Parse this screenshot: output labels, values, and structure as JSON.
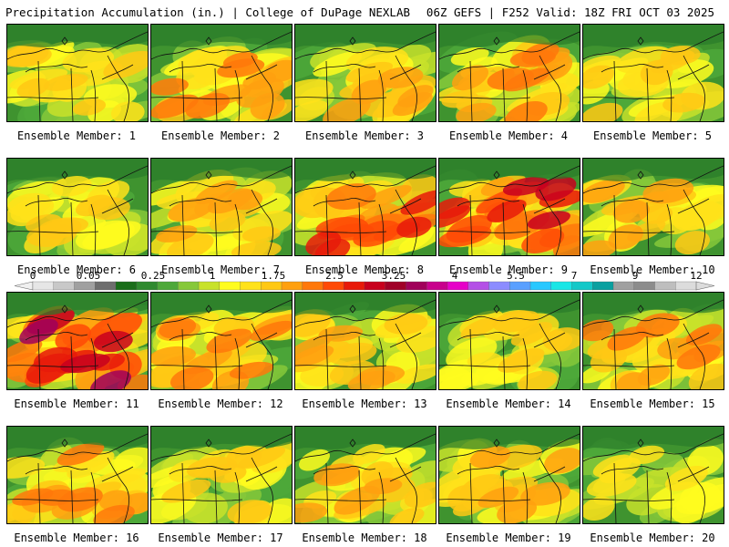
{
  "header": {
    "left": "Precipitation Accumulation (in.) | College of DuPage NEXLAB",
    "right": "06Z GEFS | F252 Valid: 18Z FRI OCT 03 2025"
  },
  "legend": {
    "tick_labels": [
      "0",
      "0.05",
      "0.25",
      "1",
      "1.75",
      "2.5",
      "3.25",
      "4",
      "5.5",
      "7",
      "9",
      "12"
    ],
    "colors": [
      "#e6e6e6",
      "#c8c8c8",
      "#a0a0a0",
      "#6e6e6e",
      "#1a6e1a",
      "#2f8a2f",
      "#4ea83a",
      "#86c83a",
      "#c8e22a",
      "#fffc1e",
      "#ffe21a",
      "#ffc814",
      "#ffa00f",
      "#ff780a",
      "#ff4a06",
      "#e81a0a",
      "#c8001e",
      "#a00028",
      "#a0005a",
      "#c8008c",
      "#e600c8",
      "#b450e6",
      "#8c8cff",
      "#5aa0ff",
      "#28c8ff",
      "#1ae6e6",
      "#14c8c8",
      "#0aa0a0",
      "#a0a0a0",
      "#8c8c8c",
      "#bebebe",
      "#dcdcdc"
    ]
  },
  "members": [
    {
      "label": "Ensemble Member: 1",
      "intensity": 0.35
    },
    {
      "label": "Ensemble Member: 2",
      "intensity": 0.55
    },
    {
      "label": "Ensemble Member: 3",
      "intensity": 0.4
    },
    {
      "label": "Ensemble Member: 4",
      "intensity": 0.55
    },
    {
      "label": "Ensemble Member: 5",
      "intensity": 0.3
    },
    {
      "label": "Ensemble Member: 6",
      "intensity": 0.35
    },
    {
      "label": "Ensemble Member: 7",
      "intensity": 0.4
    },
    {
      "label": "Ensemble Member: 8",
      "intensity": 0.75
    },
    {
      "label": "Ensemble Member: 9",
      "intensity": 0.85
    },
    {
      "label": "Ensemble Member: 10",
      "intensity": 0.45
    },
    {
      "label": "Ensemble Member: 11",
      "intensity": 0.95
    },
    {
      "label": "Ensemble Member: 12",
      "intensity": 0.6
    },
    {
      "label": "Ensemble Member: 13",
      "intensity": 0.4
    },
    {
      "label": "Ensemble Member: 14",
      "intensity": 0.35
    },
    {
      "label": "Ensemble Member: 15",
      "intensity": 0.55
    },
    {
      "label": "Ensemble Member: 16",
      "intensity": 0.55
    },
    {
      "label": "Ensemble Member: 17",
      "intensity": 0.35
    },
    {
      "label": "Ensemble Member: 18",
      "intensity": 0.45
    },
    {
      "label": "Ensemble Member: 19",
      "intensity": 0.45
    },
    {
      "label": "Ensemble Member: 20",
      "intensity": 0.25
    }
  ]
}
